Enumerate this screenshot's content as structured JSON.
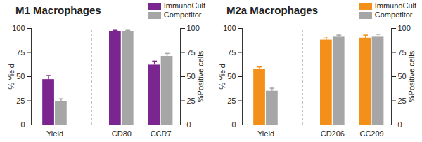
{
  "chart_data": [
    {
      "type": "bar",
      "title": "M1 Macrophages",
      "categories": [
        "Yield",
        "CD80",
        "CCR7"
      ],
      "y2_categories": [
        "CD80",
        "CCR7"
      ],
      "series": [
        {
          "name": "ImmunoCult",
          "color": "#7b2590",
          "values": [
            47,
            97,
            62
          ],
          "errors": [
            4,
            1,
            4
          ]
        },
        {
          "name": "Competitor",
          "color": "#a6a6a6",
          "values": [
            24,
            97,
            71
          ],
          "errors": [
            3,
            1,
            3
          ]
        }
      ],
      "ylabel": "% Yield",
      "ylim": [
        0,
        100
      ],
      "yticks": [
        0,
        25,
        50,
        75,
        100
      ],
      "y2label": "%Positive cells",
      "y2lim": [
        0,
        100
      ],
      "y2ticks": [
        0,
        25,
        50,
        75,
        100
      ],
      "legend": "top right",
      "grid": false
    },
    {
      "type": "bar",
      "title": "M2a Macrophages",
      "categories": [
        "Yield",
        "CD206",
        "CC209"
      ],
      "y2_categories": [
        "CD206",
        "CC209"
      ],
      "series": [
        {
          "name": "ImmunoCult",
          "color": "#f39019",
          "values": [
            58,
            88,
            90
          ],
          "errors": [
            2,
            2,
            3
          ]
        },
        {
          "name": "Competitor",
          "color": "#a6a6a6",
          "values": [
            35,
            91,
            91
          ],
          "errors": [
            3,
            2,
            3
          ]
        }
      ],
      "ylabel": "% Yield",
      "ylim": [
        0,
        100
      ],
      "yticks": [
        0,
        25,
        50,
        75,
        100
      ],
      "y2label": "%Positive cells",
      "y2lim": [
        0,
        100
      ],
      "y2ticks": [
        0,
        25,
        50,
        75,
        100
      ],
      "legend": "top right",
      "grid": false
    }
  ]
}
